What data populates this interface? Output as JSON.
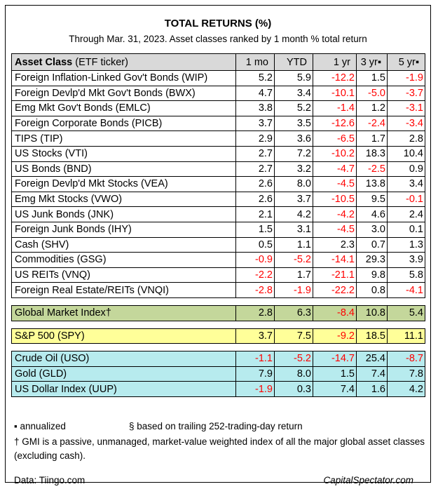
{
  "chart_data": {
    "type": "table",
    "title": "TOTAL RETURNS (%)",
    "subtitle": "Through Mar. 31, 2023. Asset classes ranked by 1 month % total return",
    "columns": [
      "Asset Class (ETF ticker)",
      "1 mo",
      "YTD",
      "1 yr",
      "3 yr▪",
      "5 yr▪"
    ],
    "groups": [
      {
        "name": "asset-classes",
        "color": "#ffffff",
        "rows": [
          {
            "name": "Foreign Inflation-Linked Gov't Bonds (WIP)",
            "values": [
              5.2,
              5.9,
              -12.2,
              1.5,
              -1.9
            ]
          },
          {
            "name": "Foreign Devlp'd Mkt Gov't Bonds (BWX)",
            "values": [
              4.7,
              3.4,
              -10.1,
              -5.0,
              -3.7
            ]
          },
          {
            "name": "Emg Mkt Gov't Bonds (EMLC)",
            "values": [
              3.8,
              5.2,
              -1.4,
              1.2,
              -3.1
            ]
          },
          {
            "name": "Foreign Corporate Bonds (PICB)",
            "values": [
              3.7,
              3.5,
              -12.6,
              -2.4,
              -3.4
            ]
          },
          {
            "name": "TIPS (TIP)",
            "values": [
              2.9,
              3.6,
              -6.5,
              1.7,
              2.8
            ]
          },
          {
            "name": "US Stocks (VTI)",
            "values": [
              2.7,
              7.2,
              -10.2,
              18.3,
              10.4
            ]
          },
          {
            "name": "US Bonds (BND)",
            "values": [
              2.7,
              3.2,
              -4.7,
              -2.5,
              0.9
            ]
          },
          {
            "name": "Foreign Devlp'd Mkt Stocks (VEA)",
            "values": [
              2.6,
              8.0,
              -4.5,
              13.8,
              3.4
            ]
          },
          {
            "name": "Emg Mkt Stocks (VWO)",
            "values": [
              2.6,
              3.7,
              -10.5,
              9.5,
              -0.1
            ]
          },
          {
            "name": "US Junk Bonds (JNK)",
            "values": [
              2.1,
              4.2,
              -4.2,
              4.6,
              2.4
            ]
          },
          {
            "name": "Foreign Junk Bonds (IHY)",
            "values": [
              1.5,
              3.1,
              -4.5,
              3.0,
              0.1
            ]
          },
          {
            "name": "Cash (SHV)",
            "values": [
              0.5,
              1.1,
              2.3,
              0.7,
              1.3
            ]
          },
          {
            "name": "Commodities (GSG)",
            "values": [
              -0.9,
              -5.2,
              -14.1,
              29.3,
              3.9
            ]
          },
          {
            "name": "US REITs (VNQ)",
            "values": [
              -2.2,
              1.7,
              -21.1,
              9.8,
              5.8
            ]
          },
          {
            "name": "Foreign Real Estate/REITs (VNQI)",
            "values": [
              -2.8,
              -1.9,
              -22.2,
              0.8,
              -4.1
            ]
          }
        ]
      },
      {
        "name": "gmi",
        "color": "#c4d79b",
        "rows": [
          {
            "name": "Global Market Index†",
            "values": [
              2.8,
              6.3,
              -8.4,
              10.8,
              5.4
            ]
          }
        ]
      },
      {
        "name": "spy",
        "color": "#ffff99",
        "rows": [
          {
            "name": "S&P 500 (SPY)",
            "values": [
              3.7,
              7.5,
              -9.2,
              18.5,
              11.1
            ]
          }
        ]
      },
      {
        "name": "commodities",
        "color": "#b7ebee",
        "rows": [
          {
            "name": "Crude Oil (USO)",
            "values": [
              -1.1,
              -5.2,
              -14.7,
              25.4,
              -8.7
            ]
          },
          {
            "name": "Gold (GLD)",
            "values": [
              7.9,
              8.0,
              1.5,
              7.4,
              7.8
            ]
          },
          {
            "name": "US Dollar Index (UUP)",
            "values": [
              -1.9,
              0.3,
              7.4,
              1.6,
              4.2
            ]
          }
        ]
      }
    ],
    "negative_color": "#ff0000",
    "header_color": "#d9d9d9"
  },
  "notes": {
    "annualized": "▪ annualized",
    "section": "§ based on trailing 252-trading-day return",
    "gmi": "† GMI is a passive, unmanaged, market-value weighted index of all the major global asset classes (excluding cash)."
  },
  "source": "Data: Tiingo.com",
  "brand": "CapitalSpectator.com"
}
